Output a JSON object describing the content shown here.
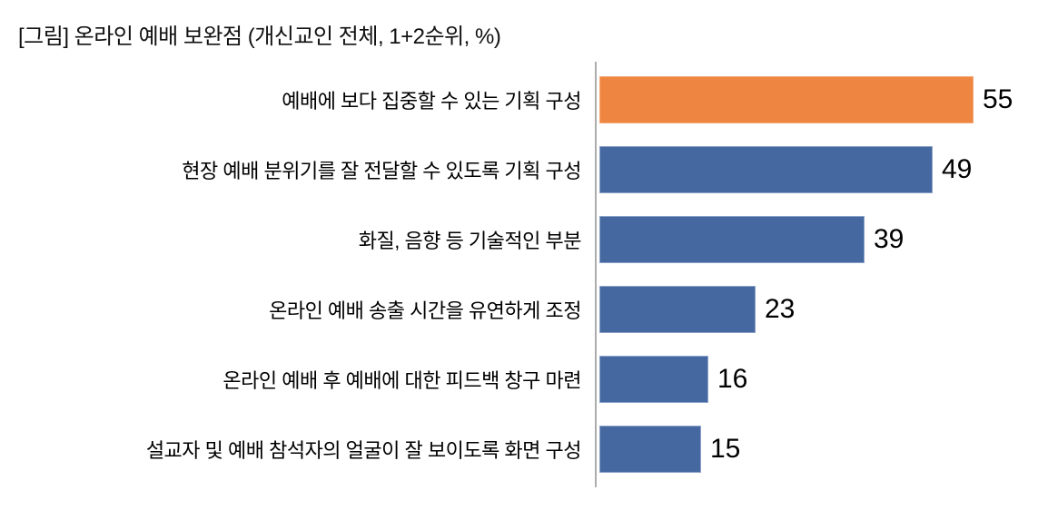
{
  "title": "[그림] 온라인 예배 보완점 (개신교인 전체, 1+2순위, %)",
  "chart_data": {
    "type": "bar",
    "orientation": "horizontal",
    "title": "[그림] 온라인 예배 보완점 (개신교인 전체, 1+2순위, %)",
    "categories": [
      "예배에 보다 집중할 수 있는 기획 구성",
      "현장 예배 분위기를 잘 전달할 수 있도록 기획 구성",
      "화질, 음향 등 기술적인 부분",
      "온라인 예배 송출 시간을 유연하게 조정",
      "온라인 예배 후 예배에 대한 피드백 창구 마련",
      "설교자 및 예배 참석자의 얼굴이 잘 보이도록 화면 구성"
    ],
    "values": [
      55,
      49,
      39,
      23,
      16,
      15
    ],
    "unit": "%",
    "highlight_index": 0,
    "colors": {
      "highlight_bar": "#ee8642",
      "default_bar": "#4668a0",
      "axis": "#acacac",
      "text": "#000000"
    },
    "xlim": [
      0,
      66
    ],
    "value_labels": true,
    "grid": false,
    "legend": false
  }
}
